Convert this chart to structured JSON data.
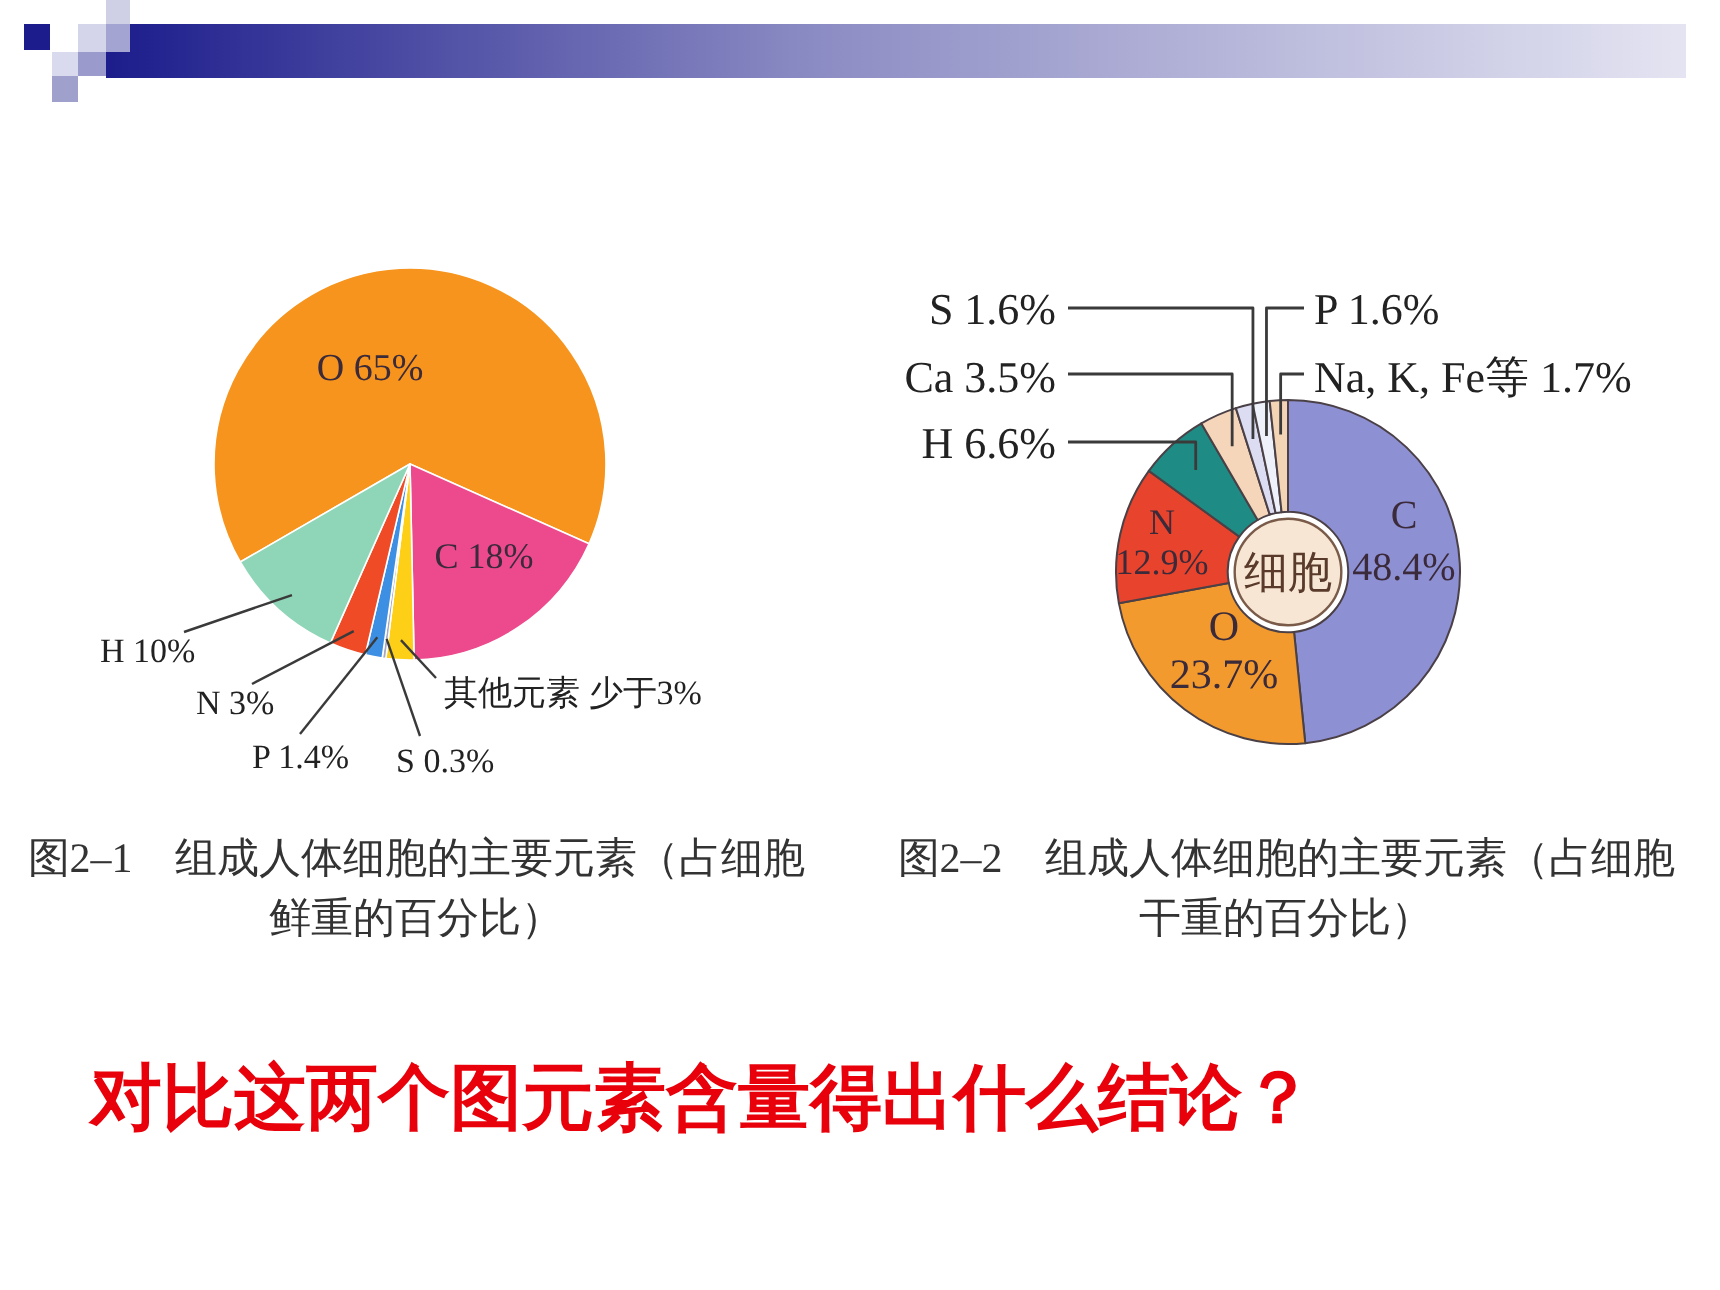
{
  "chart_data": [
    {
      "type": "pie",
      "title": "图2–1　组成人体细胞的主要元素（占细胞鲜重的百分比）",
      "categories": [
        "O",
        "C",
        "其他元素",
        "S",
        "P",
        "N",
        "H"
      ],
      "values": [
        65,
        18,
        2.3,
        0.3,
        1.4,
        3,
        10
      ],
      "value_labels": [
        "65%",
        "18%",
        "少于3%",
        "0.3%",
        "1.4%",
        "3%",
        "10%"
      ],
      "colors": [
        "#f7941d",
        "#ec4a8d",
        "#fdd017",
        "#a8a8c0",
        "#3d8fe3",
        "#ee4b26",
        "#8fd5b7"
      ]
    },
    {
      "type": "donut",
      "title": "图2–2　组成人体细胞的主要元素（占细胞干重的百分比）",
      "categories": [
        "C",
        "O",
        "N",
        "H",
        "Ca",
        "S",
        "P",
        "Na, K, Fe等"
      ],
      "values": [
        48.4,
        23.7,
        12.9,
        6.6,
        3.5,
        1.6,
        1.6,
        1.7
      ],
      "value_labels": [
        "48.4%",
        "23.7%",
        "12.9%",
        "6.6%",
        "3.5%",
        "1.6%",
        "1.6%",
        "1.7%"
      ],
      "colors": [
        "#8e90d4",
        "#f39a2e",
        "#e8432c",
        "#1e8c84",
        "#f5d6bb",
        "#dcdcf2",
        "#eef0fa",
        "#f3d4b4"
      ],
      "annotations": [
        "细胞"
      ]
    },
    {
      "type": "other",
      "annotations": [
        "对比这两个图元素含量得出什么结论？"
      ]
    }
  ]
}
